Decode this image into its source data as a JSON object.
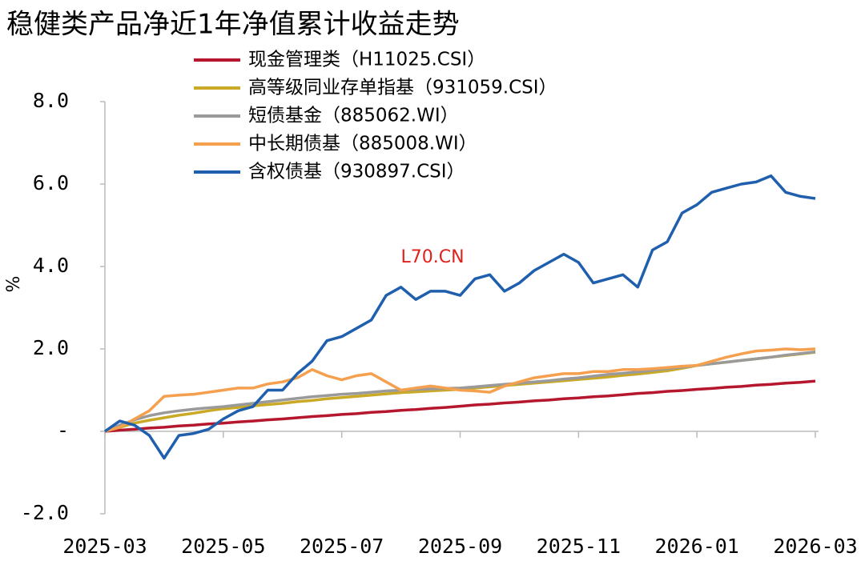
{
  "chart_data": {
    "type": "line",
    "title": "稳健类产品净近1年净值累计收益走势",
    "y_label": "%",
    "annotation": "L70.CN",
    "categories": [
      "2025-03",
      null,
      null,
      null,
      null,
      null,
      null,
      null,
      "2025-05",
      null,
      null,
      null,
      null,
      null,
      null,
      null,
      "2025-07",
      null,
      null,
      null,
      null,
      null,
      null,
      null,
      "2025-09",
      null,
      null,
      null,
      null,
      null,
      null,
      null,
      "2025-11",
      null,
      null,
      null,
      null,
      null,
      null,
      null,
      "2026-01",
      null,
      null,
      null,
      null,
      null,
      null,
      null,
      "2026-03"
    ],
    "ylim": [
      -2,
      8
    ],
    "yticks": [
      {
        "value": -2,
        "label": "-2.0"
      },
      {
        "value": 0,
        "label": "-"
      },
      {
        "value": 2,
        "label": "2.0"
      },
      {
        "value": 4,
        "label": "4.0"
      },
      {
        "value": 6,
        "label": "6.0"
      },
      {
        "value": 8,
        "label": "8.0"
      }
    ],
    "series": [
      {
        "name": "现金管理类（H11025.CSI）",
        "color": "#b5172e",
        "values": [
          0,
          0.03,
          0.05,
          0.08,
          0.1,
          0.13,
          0.15,
          0.18,
          0.2,
          0.23,
          0.25,
          0.28,
          0.3,
          0.33,
          0.36,
          0.38,
          0.41,
          0.43,
          0.46,
          0.48,
          0.51,
          0.53,
          0.56,
          0.58,
          0.61,
          0.64,
          0.66,
          0.69,
          0.71,
          0.74,
          0.76,
          0.79,
          0.81,
          0.84,
          0.86,
          0.89,
          0.92,
          0.94,
          0.97,
          0.99,
          1.02,
          1.04,
          1.07,
          1.09,
          1.12,
          1.14,
          1.17,
          1.19,
          1.22
        ]
      },
      {
        "name": "高等级同业存单指基（931059.CSI）",
        "color": "#c9a925",
        "values": [
          0,
          0.1,
          0.2,
          0.27,
          0.33,
          0.39,
          0.44,
          0.5,
          0.55,
          0.58,
          0.62,
          0.65,
          0.68,
          0.72,
          0.75,
          0.79,
          0.82,
          0.85,
          0.88,
          0.91,
          0.94,
          0.96,
          0.98,
          1.0,
          1.02,
          1.05,
          1.08,
          1.11,
          1.14,
          1.17,
          1.2,
          1.23,
          1.26,
          1.29,
          1.32,
          1.36,
          1.39,
          1.43,
          1.47,
          1.53,
          1.6,
          1.64,
          1.68,
          1.72,
          1.76,
          1.8,
          1.84,
          1.88,
          1.92
        ]
      },
      {
        "name": "短债基金（885062.WI）",
        "color": "#9a9a9a",
        "values": [
          0,
          0.15,
          0.28,
          0.38,
          0.45,
          0.5,
          0.54,
          0.57,
          0.6,
          0.64,
          0.68,
          0.72,
          0.76,
          0.8,
          0.84,
          0.87,
          0.9,
          0.92,
          0.95,
          0.98,
          1.0,
          1.02,
          1.03,
          1.04,
          1.05,
          1.08,
          1.11,
          1.14,
          1.17,
          1.2,
          1.23,
          1.27,
          1.3,
          1.34,
          1.38,
          1.41,
          1.44,
          1.48,
          1.52,
          1.56,
          1.6,
          1.64,
          1.68,
          1.72,
          1.76,
          1.8,
          1.85,
          1.89,
          1.93
        ]
      },
      {
        "name": "中长期债基（885008.WI）",
        "color": "#f5a04f",
        "values": [
          0,
          0.1,
          0.3,
          0.5,
          0.85,
          0.88,
          0.9,
          0.95,
          1.0,
          1.05,
          1.05,
          1.15,
          1.2,
          1.3,
          1.5,
          1.35,
          1.25,
          1.35,
          1.4,
          1.2,
          1.0,
          1.05,
          1.1,
          1.05,
          1.0,
          0.98,
          0.95,
          1.1,
          1.2,
          1.3,
          1.35,
          1.4,
          1.4,
          1.45,
          1.45,
          1.5,
          1.5,
          1.52,
          1.55,
          1.58,
          1.6,
          1.7,
          1.8,
          1.88,
          1.95,
          1.97,
          2.0,
          1.98,
          2.0
        ]
      },
      {
        "name": "含权债基（930897.CSI）",
        "color": "#1f5fad",
        "values": [
          0,
          0.25,
          0.15,
          -0.1,
          -0.65,
          -0.1,
          -0.05,
          0.05,
          0.3,
          0.5,
          0.6,
          1.0,
          1.0,
          1.4,
          1.7,
          2.2,
          2.3,
          2.5,
          2.7,
          3.3,
          3.5,
          3.2,
          3.4,
          3.4,
          3.3,
          3.7,
          3.8,
          3.4,
          3.6,
          3.9,
          4.1,
          4.3,
          4.1,
          3.6,
          3.7,
          3.8,
          3.5,
          4.4,
          4.6,
          5.3,
          5.5,
          5.8,
          5.9,
          6.0,
          6.05,
          6.2,
          5.8,
          5.7,
          5.65
        ]
      }
    ]
  }
}
